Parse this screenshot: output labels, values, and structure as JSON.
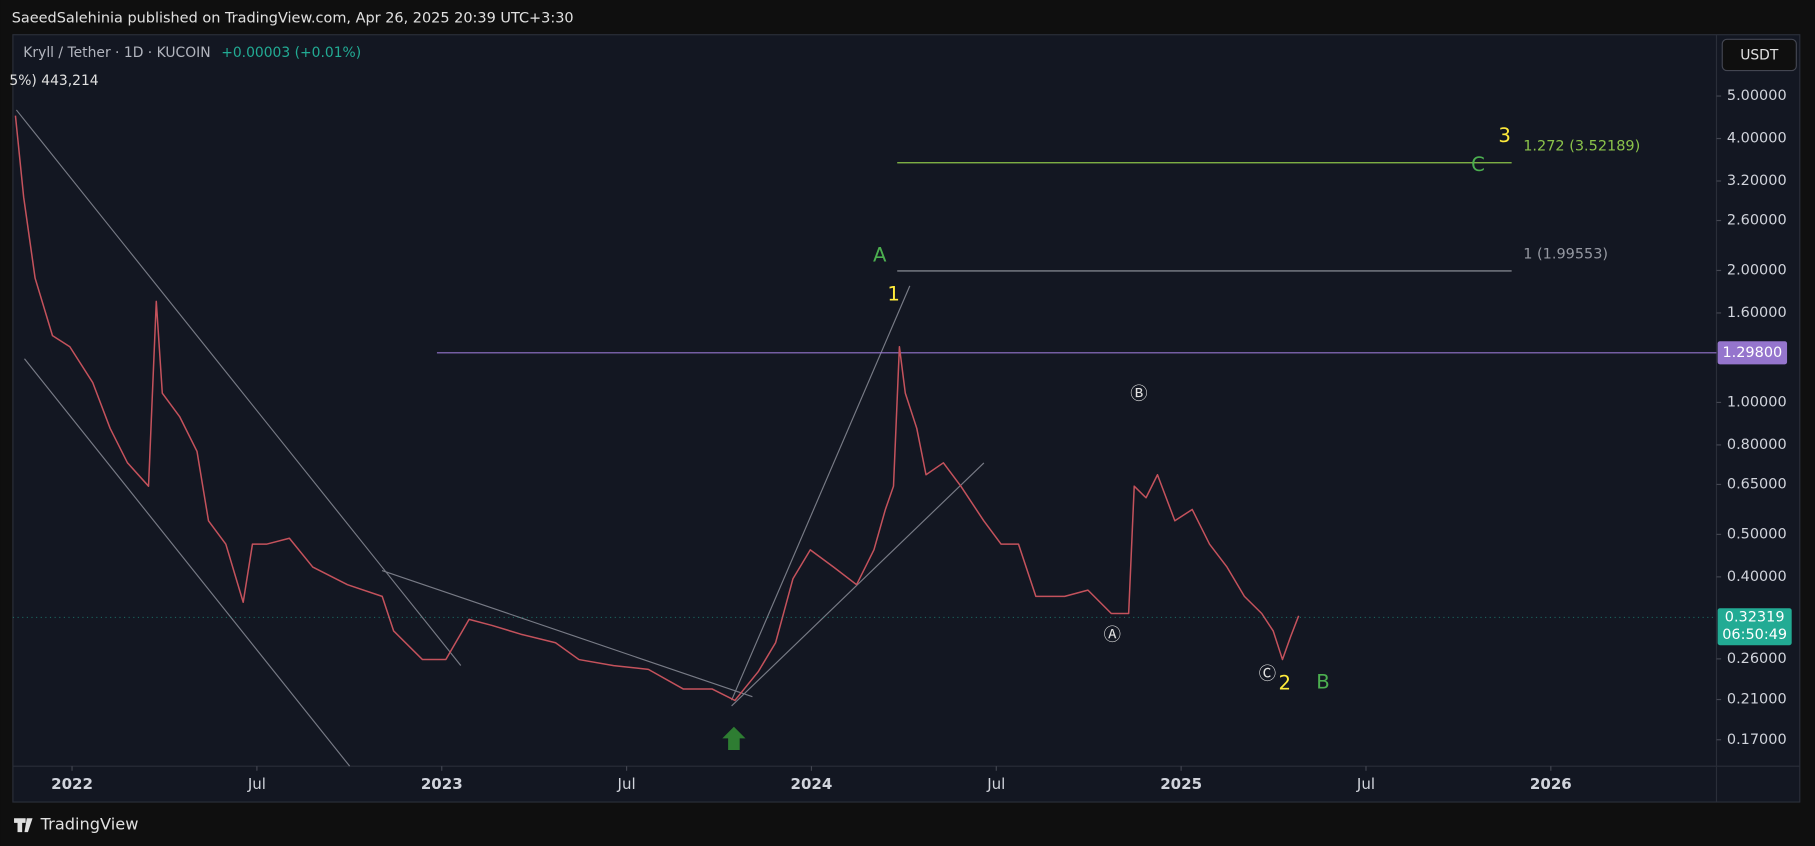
{
  "header": {
    "publisher": "SaeedSalehinia published on TradingView.com, Apr 26, 2025 20:39 UTC+3:30"
  },
  "legend": {
    "symbol": "Kryll / Tether · 1D · KUCOIN",
    "change": "+0.00003 (+0.01%)",
    "volume": "5%) 443,214"
  },
  "currency_button": "USDT",
  "footer": {
    "brand": "TradingView"
  },
  "chart_data": {
    "type": "line",
    "log_scale": true,
    "grid": false,
    "color": "#c4525c",
    "x": [
      2021.847,
      2021.869,
      2021.9,
      2021.947,
      2021.994,
      2022.056,
      2022.103,
      2022.15,
      2022.207,
      2022.228,
      2022.244,
      2022.291,
      2022.338,
      2022.369,
      2022.416,
      2022.463,
      2022.488,
      2022.526,
      2022.588,
      2022.651,
      2022.745,
      2022.839,
      2022.87,
      2022.948,
      2023.011,
      2023.074,
      2023.136,
      2023.214,
      2023.308,
      2023.371,
      2023.465,
      2023.559,
      2023.653,
      2023.731,
      2023.793,
      2023.856,
      2023.903,
      2023.95,
      2023.997,
      2024.06,
      2024.122,
      2024.169,
      2024.2,
      2024.222,
      2024.238,
      2024.254,
      2024.285,
      2024.31,
      2024.357,
      2024.404,
      2024.466,
      2024.513,
      2024.56,
      2024.607,
      2024.685,
      2024.748,
      2024.811,
      2024.858,
      2024.873,
      2024.905,
      2024.936,
      2024.983,
      2025.03,
      2025.077,
      2025.124,
      2025.171,
      2025.218,
      2025.249,
      2025.274,
      2025.296,
      2025.318
    ],
    "values": [
      4.51,
      2.94,
      1.92,
      1.42,
      1.34,
      1.11,
      0.873,
      0.728,
      0.644,
      1.7,
      1.05,
      0.928,
      0.773,
      0.537,
      0.475,
      0.35,
      0.475,
      0.475,
      0.49,
      0.421,
      0.384,
      0.361,
      0.301,
      0.259,
      0.259,
      0.32,
      0.31,
      0.296,
      0.283,
      0.259,
      0.251,
      0.246,
      0.222,
      0.222,
      0.209,
      0.243,
      0.283,
      0.396,
      0.461,
      0.421,
      0.384,
      0.461,
      0.57,
      0.644,
      1.34,
      1.05,
      0.873,
      0.684,
      0.728,
      0.644,
      0.537,
      0.475,
      0.475,
      0.361,
      0.361,
      0.373,
      0.33,
      0.33,
      0.644,
      0.606,
      0.684,
      0.537,
      0.57,
      0.475,
      0.421,
      0.361,
      0.33,
      0.301,
      0.259,
      0.292,
      0.326
    ],
    "xlim": [
      2021.84,
      2026.448
    ],
    "xticks": [
      {
        "value": 2022,
        "label": "2022"
      },
      {
        "value": 2022.5,
        "label": "Jul"
      },
      {
        "value": 2023,
        "label": "2023"
      },
      {
        "value": 2023.5,
        "label": "Jul"
      },
      {
        "value": 2024,
        "label": "2024"
      },
      {
        "value": 2024.5,
        "label": "Jul"
      },
      {
        "value": 2025,
        "label": "2025"
      },
      {
        "value": 2025.5,
        "label": "Jul"
      },
      {
        "value": 2026,
        "label": "2026"
      }
    ],
    "ylim": [
      0.148,
      6.9
    ],
    "yticks": [
      {
        "value": 5,
        "label": "5.00000"
      },
      {
        "value": 4,
        "label": "4.00000"
      },
      {
        "value": 3.2,
        "label": "3.20000"
      },
      {
        "value": 2.6,
        "label": "2.60000"
      },
      {
        "value": 2,
        "label": "2.00000"
      },
      {
        "value": 1.6,
        "label": "1.60000"
      },
      {
        "value": 1,
        "label": "1.00000"
      },
      {
        "value": 0.8,
        "label": "0.80000"
      },
      {
        "value": 0.65,
        "label": "0.65000"
      },
      {
        "value": 0.5,
        "label": "0.50000"
      },
      {
        "value": 0.4,
        "label": "0.40000"
      },
      {
        "value": 0.26,
        "label": "0.26000"
      },
      {
        "value": 0.21,
        "label": "0.21000"
      },
      {
        "value": 0.17,
        "label": "0.17000"
      }
    ],
    "fib_levels": [
      {
        "label": "1.272 (3.52189)",
        "value": 3.52189,
        "x": [
          2024.232,
          2025.894
        ],
        "color": "#8bc34a"
      },
      {
        "label": "1 (1.99553)",
        "value": 1.99553,
        "x": [
          2024.232,
          2025.894
        ],
        "color": "#9598a1"
      }
    ],
    "horizontal_line": {
      "value": 1.298,
      "label": "1.29800",
      "x_start": 2022.987,
      "color": "#9575cd"
    },
    "last_price": {
      "value": 0.32319,
      "label": "0.32319",
      "countdown": "06:50:49",
      "color": "#22ab94"
    },
    "annotations": [
      {
        "text": "A",
        "color": "#4caf50"
      },
      {
        "text": "1",
        "color": "#ffeb3b"
      },
      {
        "text": "3",
        "color": "#ffeb3b"
      },
      {
        "text": "C",
        "color": "#4caf50"
      },
      {
        "text": "Ⓑ",
        "color": "#e0e0e0"
      },
      {
        "text": "Ⓐ",
        "color": "#e0e0e0"
      },
      {
        "text": "Ⓒ",
        "color": "#e0e0e0"
      },
      {
        "text": "2",
        "color": "#ffeb3b"
      },
      {
        "text": "B",
        "color": "#4caf50"
      }
    ]
  }
}
